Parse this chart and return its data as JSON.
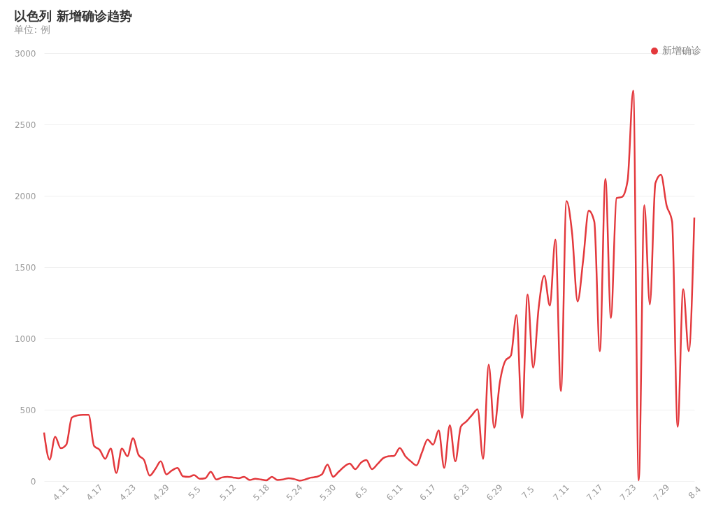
{
  "chart_data": {
    "type": "line",
    "title": "以色列 新增确诊趋势",
    "subtitle": "单位: 例",
    "categories": [
      null,
      null,
      null,
      "4.11",
      null,
      null,
      null,
      null,
      null,
      "4.17",
      null,
      null,
      null,
      null,
      null,
      "4.23",
      null,
      null,
      null,
      null,
      null,
      "4.29",
      null,
      null,
      null,
      null,
      null,
      "5.5",
      null,
      null,
      null,
      null,
      null,
      "5.12",
      null,
      null,
      null,
      null,
      null,
      "5.18",
      null,
      null,
      null,
      null,
      null,
      "5.24",
      null,
      null,
      null,
      null,
      null,
      "5.30",
      null,
      null,
      null,
      null,
      null,
      "6.5",
      null,
      null,
      null,
      null,
      null,
      "6.11",
      null,
      null,
      null,
      null,
      null,
      "6.17",
      null,
      null,
      null,
      null,
      null,
      "6.23",
      null,
      null,
      null,
      null,
      null,
      "6.29",
      null,
      null,
      null,
      null,
      null,
      "7.5",
      null,
      null,
      null,
      null,
      null,
      "7.11",
      null,
      null,
      null,
      null,
      null,
      "7.17",
      null,
      null,
      null,
      null,
      null,
      "7.23",
      null,
      null,
      null,
      null,
      null,
      "7.29",
      null,
      null,
      null,
      null,
      null,
      "8.4"
    ],
    "series": [
      {
        "name": "新增确诊",
        "color": "#e3383c",
        "values": [
          340,
          150,
          310,
          230,
          255,
          445,
          460,
          465,
          465,
          246,
          219,
          156,
          228,
          56,
          228,
          174,
          300,
          183,
          147,
          38,
          83,
          138,
          47,
          74,
          92,
          33,
          29,
          42,
          16,
          20,
          65,
          11,
          25,
          29,
          25,
          20,
          29,
          7,
          16,
          11,
          5,
          29,
          7,
          11,
          20,
          14,
          3,
          11,
          24,
          29,
          47,
          115,
          30,
          65,
          101,
          123,
          83,
          128,
          147,
          83,
          119,
          160,
          174,
          177,
          232,
          174,
          138,
          110,
          201,
          291,
          255,
          355,
          92,
          391,
          138,
          382,
          418,
          463,
          503,
          156,
          816,
          373,
          690,
          843,
          880,
          1164,
          443,
          1308,
          795,
          1218,
          1440,
          1230,
          1693,
          631,
          1963,
          1741,
          1259,
          1548,
          1896,
          1819,
          911,
          2118,
          1143,
          1983,
          1992,
          2108,
          2736,
          5,
          1934,
          1239,
          2089,
          2147,
          1934,
          1819,
          380,
          1346,
          911,
          1847
        ]
      }
    ],
    "ylim": [
      0,
      3000
    ],
    "yticks": [
      0,
      500,
      1000,
      1500,
      2000,
      2500,
      3000
    ],
    "grid": "y",
    "legend": "top right",
    "marker": "none",
    "line_style": "solid"
  }
}
